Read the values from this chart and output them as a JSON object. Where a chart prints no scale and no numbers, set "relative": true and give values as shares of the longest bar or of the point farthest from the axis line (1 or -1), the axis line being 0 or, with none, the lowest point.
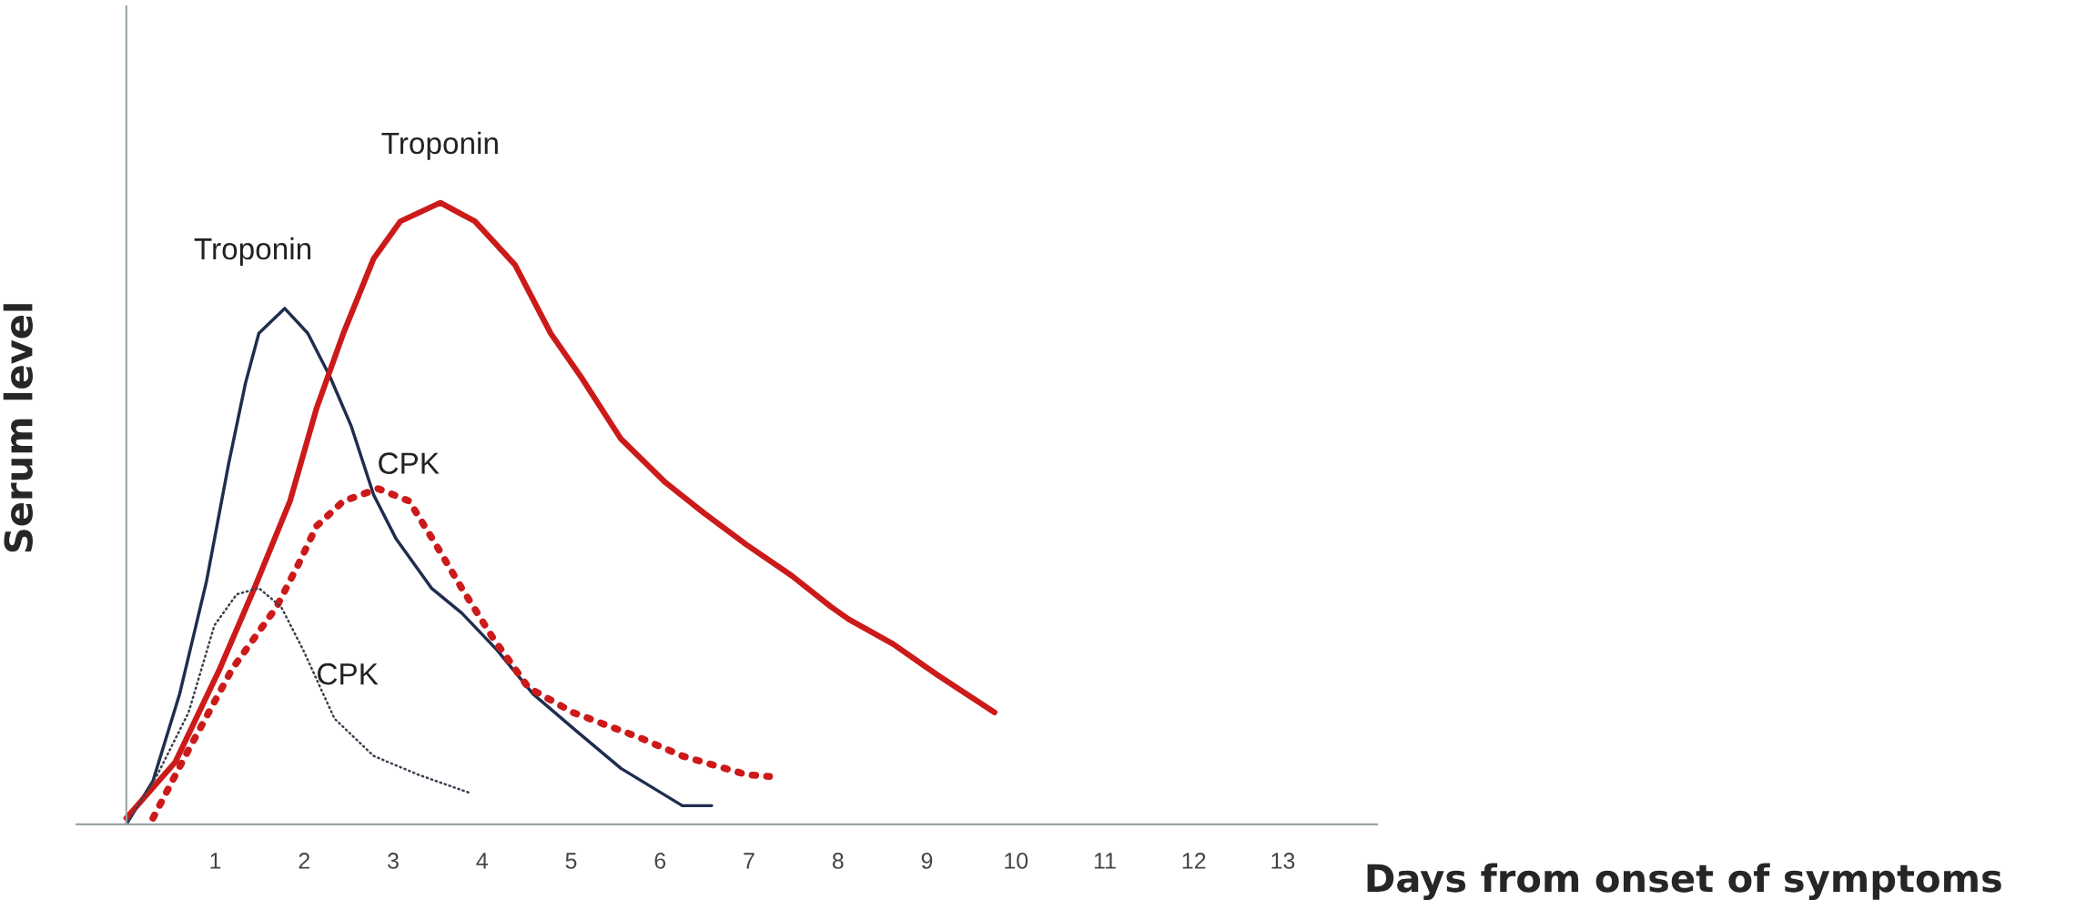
{
  "chart_data": {
    "type": "line",
    "relative": true,
    "xlabel": "Days from onset of symptoms",
    "ylabel": "Serum level",
    "xlim": [
      -0.56,
      14.06
    ],
    "xticks": [
      1,
      2,
      3,
      4,
      5,
      6,
      7,
      8,
      9,
      10,
      11,
      12,
      13
    ],
    "grid": false,
    "legend": false,
    "marker": "none",
    "series": [
      {
        "name": "Troponin",
        "color": "#1f2d4f",
        "line_style": "solid",
        "x": [
          0,
          0.3,
          0.6,
          0.9,
          1.15,
          1.34,
          1.49,
          1.78,
          2.04,
          2.29,
          2.53,
          2.78,
          3.03,
          3.43,
          3.77,
          4.17,
          4.57,
          5.06,
          5.56,
          6.25,
          6.58
        ],
        "values": [
          0,
          0.07,
          0.21,
          0.39,
          0.58,
          0.71,
          0.79,
          0.83,
          0.79,
          0.72,
          0.64,
          0.53,
          0.46,
          0.38,
          0.34,
          0.28,
          0.21,
          0.15,
          0.09,
          0.03,
          0.03
        ]
      },
      {
        "name": "Troponin",
        "color": "#cc1a1a",
        "line_style": "solid",
        "x": [
          0,
          0.55,
          1.05,
          1.44,
          1.84,
          2.14,
          2.44,
          2.78,
          3.08,
          3.53,
          3.92,
          4.37,
          4.77,
          5.11,
          5.56,
          6.06,
          6.5,
          6.97,
          7.48,
          7.92,
          8.12,
          8.62,
          9.12,
          9.76
        ],
        "values": [
          0.01,
          0.1,
          0.25,
          0.38,
          0.52,
          0.67,
          0.79,
          0.91,
          0.97,
          1,
          0.97,
          0.9,
          0.79,
          0.72,
          0.62,
          0.55,
          0.5,
          0.45,
          0.4,
          0.35,
          0.33,
          0.29,
          0.24,
          0.18
        ]
      },
      {
        "name": "CPK",
        "color": "#cc1a1a",
        "line_style": "dotted",
        "x": [
          0.3,
          0.7,
          1.19,
          1.69,
          1.94,
          2.14,
          2.44,
          2.83,
          3.18,
          3.48,
          3.77,
          4.12,
          4.52,
          5.02,
          5.76,
          6.25,
          6.97,
          7.23
        ],
        "values": [
          0.01,
          0.12,
          0.25,
          0.35,
          0.42,
          0.48,
          0.52,
          0.54,
          0.52,
          0.45,
          0.38,
          0.3,
          0.22,
          0.18,
          0.14,
          0.11,
          0.08,
          0.077
        ]
      },
      {
        "name": "CPK",
        "color": "#3a4050",
        "line_style": "dotted",
        "x": [
          0,
          0.35,
          0.7,
          0.99,
          1.24,
          1.49,
          1.74,
          1.99,
          2.34,
          2.78,
          3.28,
          3.87
        ],
        "values": [
          0,
          0.08,
          0.18,
          0.32,
          0.37,
          0.38,
          0.35,
          0.28,
          0.17,
          0.11,
          0.08,
          0.05
        ]
      }
    ]
  }
}
